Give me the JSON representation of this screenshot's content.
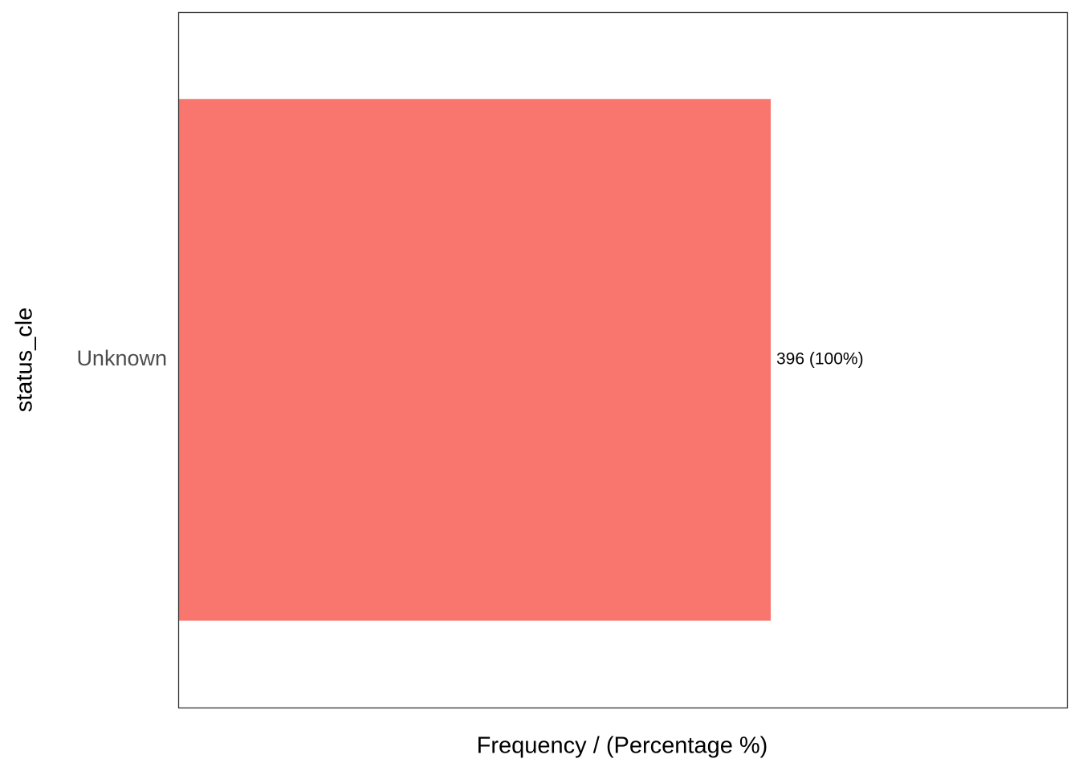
{
  "chart_data": {
    "type": "hbar",
    "x_label": "Frequency / (Percentage %)",
    "y_label": "status_cle",
    "categories": [
      "Unknown"
    ],
    "values": [
      396
    ],
    "value_labels": [
      "396 (100%)"
    ],
    "color": "#F8766D",
    "xlim": [
      0,
      594
    ]
  }
}
